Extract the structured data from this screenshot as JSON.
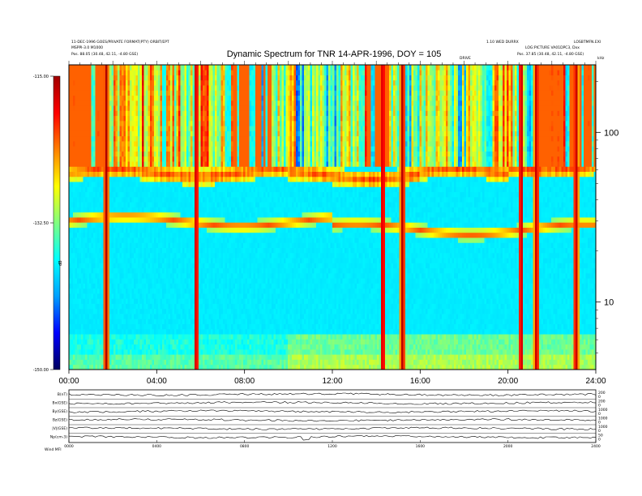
{
  "header": {
    "left_line1": "11-DEC-1996 GOES/PRIVATE FORMAT(PTY) ORBIT/EPT",
    "left_line2": "MSPPI-3.0 M1000",
    "left_line3": "Pos.  88.05 (30.48, 42.11, -4.80 GSE)",
    "right_line1": "1.10 WED DURRX",
    "right_line2": "LOG:PICTURE VA01DPC3, Dxx",
    "right_line3": "Pos.  37.85 (30.48, 42.11, -4.80 GSE)",
    "far_right": "LOSBTMFN.EXI",
    "mid_marker": "DRIVE",
    "corner_label": "kHz"
  },
  "chart_data": {
    "type": "heatmap",
    "title": "Dynamic Spectrum for TNR 14-APR-1996, DOY = 105",
    "x_ticks": [
      "00:00",
      "04:00",
      "08:00",
      "12:00",
      "16:00",
      "20:00",
      "24:00"
    ],
    "x_range_hours": [
      0,
      24
    ],
    "y_ticks": [
      "100",
      "10"
    ],
    "y_tick_values": [
      100,
      10
    ],
    "y_log": true,
    "y_range": [
      4,
      250
    ],
    "colorbar": {
      "ticks": [
        "-115.00",
        "-132.50",
        "-150.00"
      ],
      "tick_values": [
        -115.0,
        -132.5,
        -150.0
      ],
      "label": "dB",
      "colors": [
        "#000060",
        "#0000ff",
        "#00a0ff",
        "#00ffff",
        "#80ff80",
        "#ffff00",
        "#ff8000",
        "#ff0000",
        "#a00000"
      ]
    },
    "bursts_hours": [
      1.7,
      5.8,
      14.3,
      15.2,
      20.6,
      21.3,
      23.1
    ],
    "rows": [
      {
        "label": "B(nT)",
        "right_ticks": [
          "200",
          "0"
        ]
      },
      {
        "label": "Bx(GSE)",
        "right_ticks": [
          "200",
          "0"
        ]
      },
      {
        "label": "By(GSE)",
        "right_ticks": [
          "1000",
          "0"
        ]
      },
      {
        "label": "Bz(GSE)",
        "right_ticks": [
          "1000",
          "0"
        ]
      },
      {
        "label": "|V|(GSE)",
        "right_ticks": [
          "1000",
          "0"
        ]
      },
      {
        "label": "Np(cm-3)",
        "right_ticks": [
          "50",
          "0"
        ]
      }
    ],
    "bottom_x_ticks": [
      "0000",
      "0400",
      "0800",
      "1200",
      "1600",
      "2000",
      "2400"
    ],
    "bottom_label": "Wind    MFI"
  }
}
